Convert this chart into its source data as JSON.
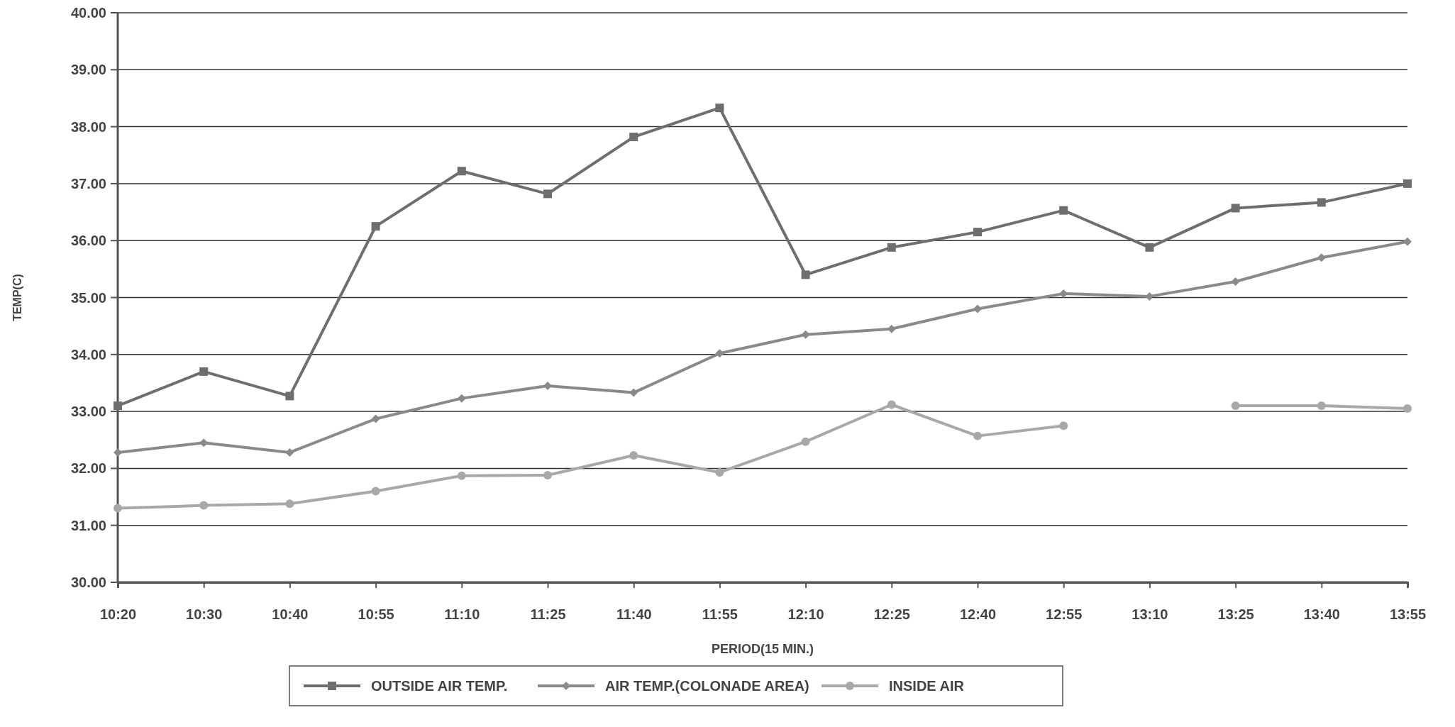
{
  "chart_data": {
    "type": "line",
    "xlabel": "PERIOD(15 MIN.)",
    "ylabel": "TEMP(C)",
    "categories": [
      "10:20",
      "10:30",
      "10:40",
      "10:55",
      "11:10",
      "11:25",
      "11:40",
      "11:55",
      "12:10",
      "12:25",
      "12:40",
      "12:55",
      "13:10",
      "13:25",
      "13:40",
      "13:55"
    ],
    "series": [
      {
        "name": "OUTSIDE AIR TEMP.",
        "color": "#6e6e6e",
        "marker": "square",
        "values": [
          33.1,
          33.7,
          33.27,
          36.25,
          37.22,
          36.82,
          37.82,
          38.33,
          35.4,
          35.88,
          36.15,
          36.53,
          35.88,
          36.57,
          36.67,
          37.0
        ]
      },
      {
        "name": "AIR TEMP.(COLONADE AREA)",
        "color": "#8a8a8a",
        "marker": "diamond",
        "values": [
          32.28,
          32.45,
          32.28,
          32.87,
          33.23,
          33.45,
          33.33,
          34.02,
          34.35,
          34.45,
          34.8,
          35.07,
          35.02,
          35.28,
          35.7,
          35.98
        ]
      },
      {
        "name": "INSIDE AIR",
        "color": "#a8a8a8",
        "marker": "circle",
        "values": [
          31.3,
          31.35,
          31.38,
          31.6,
          31.87,
          31.88,
          32.23,
          31.93,
          32.47,
          33.12,
          32.57,
          32.75,
          null,
          33.1,
          33.1,
          33.05
        ]
      }
    ],
    "ylim": [
      30,
      40
    ],
    "yticks": [
      {
        "value": 30,
        "label": "30.00"
      },
      {
        "value": 31,
        "label": "31.00"
      },
      {
        "value": 32,
        "label": "32.00"
      },
      {
        "value": 33,
        "label": "33.00"
      },
      {
        "value": 34,
        "label": "34.00"
      },
      {
        "value": 35,
        "label": "35.00"
      },
      {
        "value": 36,
        "label": "36.00"
      },
      {
        "value": 37,
        "label": "37.00"
      },
      {
        "value": 38,
        "label": "38.00"
      },
      {
        "value": 39,
        "label": "39.00"
      },
      {
        "value": 40,
        "label": "40.00"
      }
    ],
    "grid": "y",
    "legend": "bottom",
    "line_style": "solid"
  }
}
